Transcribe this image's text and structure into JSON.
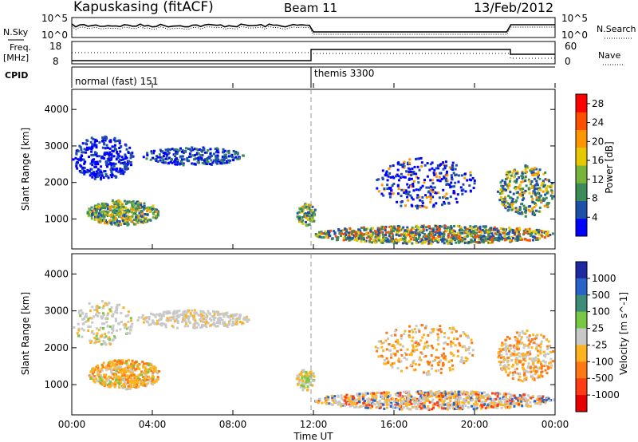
{
  "header": {
    "station": "Kapuskasing (fitACF)",
    "beam": "Beam 11",
    "date": "13/Feb/2012"
  },
  "left_labels": {
    "nsky": "N.Sky",
    "freq": "Freq.",
    "mhz": "[MHz]",
    "cpid": "CPID"
  },
  "right_labels": {
    "nsearch": "N.Search",
    "nave": "Nave"
  },
  "noise_axis": {
    "top": "10^5",
    "bottom": "10^0"
  },
  "freq_axis": {
    "top": "18",
    "bottom": "8"
  },
  "nave_axis": {
    "top": "60",
    "bottom": "0"
  },
  "cpid_modes": [
    {
      "label": "normal (fast) 151",
      "start": "00:00"
    },
    {
      "label": "themis 3300",
      "start": "12:00"
    }
  ],
  "chart_data": [
    {
      "type": "heatmap",
      "panel": "power",
      "xlabel": "",
      "ylabel": "Slant Range [km]",
      "x_ticks": [
        "00:00",
        "04:00",
        "08:00",
        "12:00",
        "16:00",
        "20:00",
        "00:00"
      ],
      "xlim": [
        0,
        24
      ],
      "y_ticks": [
        1000,
        2000,
        3000,
        4000
      ],
      "ylim": [
        180,
        4550
      ],
      "colorbar": {
        "label": "Power [dB]",
        "ticks": [
          4,
          8,
          12,
          16,
          20,
          24,
          28
        ],
        "range": [
          0,
          30
        ],
        "colors": [
          "#0000ff",
          "#1e50aa",
          "#3c8c5a",
          "#78b43c",
          "#e6c800",
          "#ff9600",
          "#ff5000",
          "#ff0000"
        ]
      },
      "dominant_value": "low power (blue) scatter across most of the range, with higher power (green to orange) patches near 900–1600 km"
    },
    {
      "type": "heatmap",
      "panel": "velocity",
      "xlabel": "Time UT",
      "ylabel": "Slant Range [km]",
      "x_ticks": [
        "00:00",
        "04:00",
        "08:00",
        "12:00",
        "16:00",
        "20:00",
        "00:00"
      ],
      "xlim": [
        0,
        24
      ],
      "y_ticks": [
        1000,
        2000,
        3000,
        4000
      ],
      "ylim": [
        180,
        4550
      ],
      "colorbar": {
        "label": "Velocity [m s^-1]",
        "ticks": [
          1000,
          500,
          100,
          25,
          -25,
          -100,
          -500,
          -1000
        ],
        "range": [
          -1200,
          1200
        ],
        "colors": [
          "#1e28a0",
          "#2864c8",
          "#3c8c78",
          "#78c846",
          "#c8c8c8",
          "#ffb41e",
          "#ff7814",
          "#ff3c14",
          "#e60000"
        ]
      },
      "dominant_value": "mostly grey (near-zero) velocities with orange (negative) patches near 900–1600 km"
    }
  ]
}
